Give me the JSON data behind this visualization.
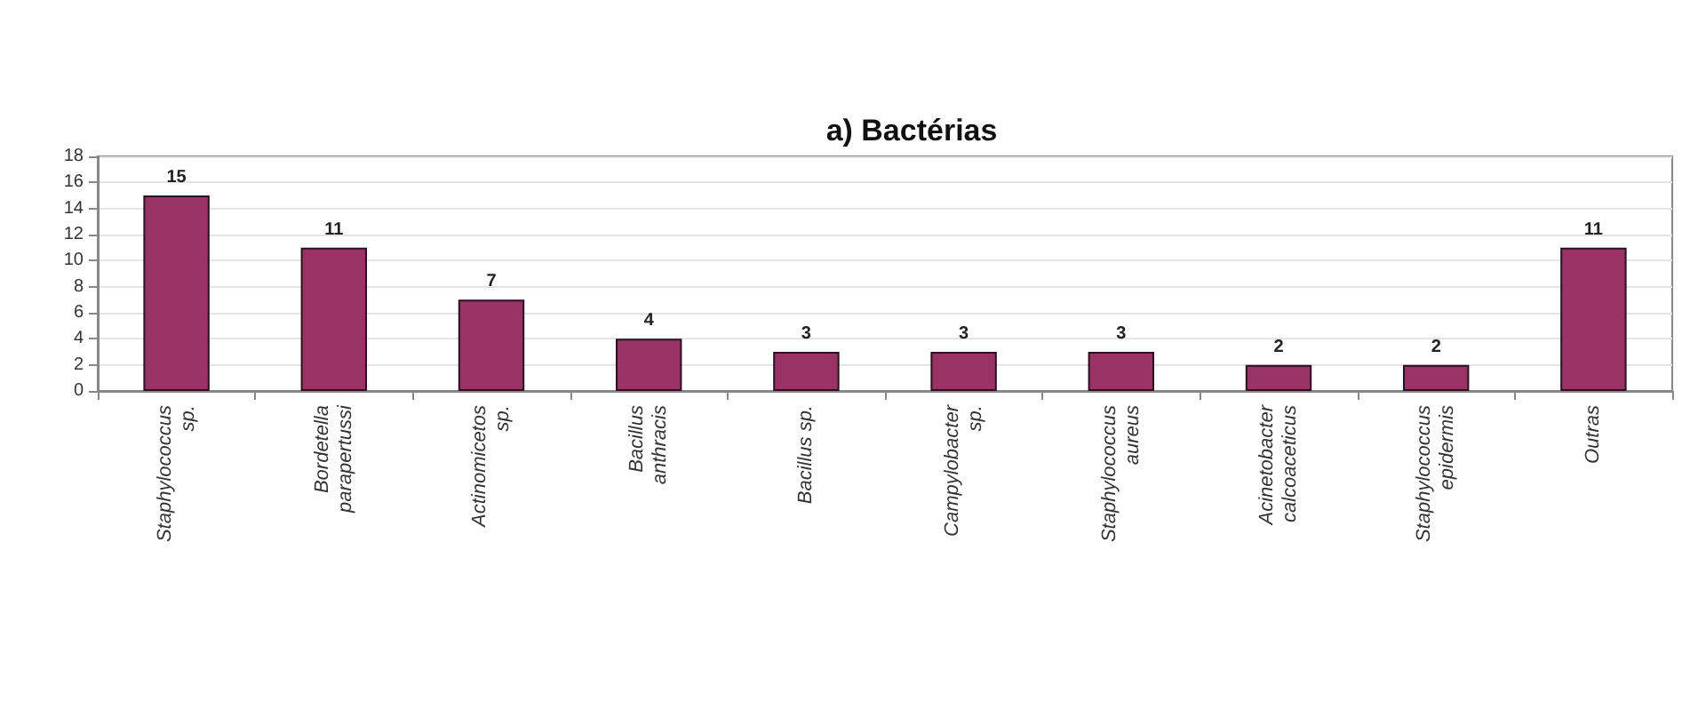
{
  "chart_data": {
    "type": "bar",
    "title": "a) Bactérias",
    "categories": [
      "Staphylococcus\nsp.",
      "Bordetella\nparapertussi",
      "Actinomicetos\nsp.",
      "Bacillus\nanthracis",
      "Bacillus sp.",
      "Campylobacter\nsp.",
      "Staphylococcus\naureus",
      "Acinetobacter\ncalcoaceticus",
      "Staphylococcus\nepidermis",
      "Outras"
    ],
    "values": [
      15,
      11,
      7,
      4,
      3,
      3,
      3,
      2,
      2,
      11
    ],
    "color": "#993366",
    "ylim": [
      0,
      18
    ],
    "yticks": [
      0,
      2,
      4,
      6,
      8,
      10,
      12,
      14,
      16,
      18
    ],
    "grid": true,
    "data_labels": true
  }
}
